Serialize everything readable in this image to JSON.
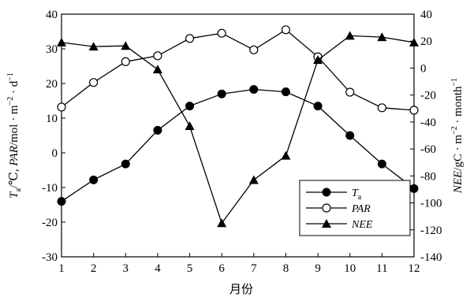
{
  "chart_data": {
    "type": "line",
    "xlabel": "月份",
    "ylabel_left": "Ta/℃, PAR/mol · m⁻² · d⁻¹",
    "ylabel_right": "NEE/gC · m⁻² · month⁻¹",
    "x": [
      1,
      2,
      3,
      4,
      5,
      6,
      7,
      8,
      9,
      10,
      11,
      12
    ],
    "xlim": [
      1,
      12
    ],
    "ylim_left": [
      -30,
      40
    ],
    "ylim_right": [
      -140,
      40
    ],
    "yticks_left": [
      -30,
      -20,
      -10,
      0,
      10,
      20,
      30,
      40
    ],
    "yticks_right": [
      -140,
      -120,
      -100,
      -80,
      -60,
      -40,
      -20,
      0,
      20,
      40
    ],
    "grid": false,
    "legend_position": "lower-right",
    "series": [
      {
        "name": "Ta",
        "axis": "left",
        "marker": "filled-circle",
        "values": [
          -14,
          -7.8,
          -3.2,
          6.5,
          13.5,
          17,
          18.3,
          17.6,
          13.5,
          5,
          -3.2,
          -10.3
        ]
      },
      {
        "name": "PAR",
        "axis": "left",
        "marker": "open-circle",
        "values": [
          13.2,
          20.3,
          26.3,
          28,
          33,
          34.5,
          29.7,
          35.5,
          27.7,
          17.5,
          13,
          12.3
        ]
      },
      {
        "name": "NEE",
        "axis": "right",
        "marker": "filled-triangle",
        "values": [
          19,
          16,
          16.5,
          -1,
          -43,
          -115,
          -83,
          -65,
          6,
          24,
          23,
          19
        ]
      }
    ]
  }
}
